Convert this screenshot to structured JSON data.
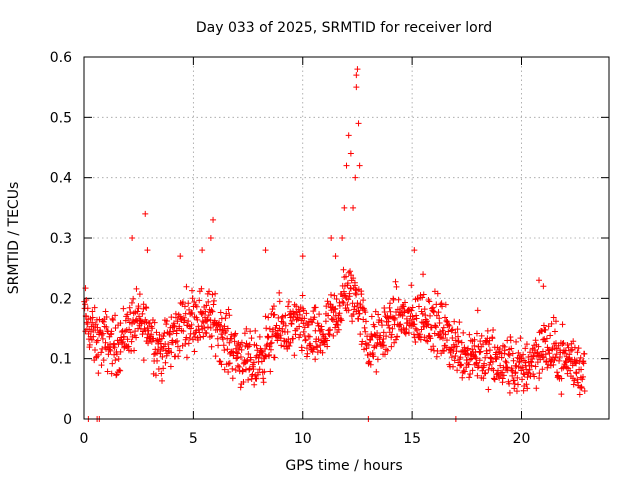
{
  "chart_data": {
    "type": "scatter",
    "title": "Day 033 of 2025, SRMTID for receiver lord",
    "xlabel": "GPS time / hours",
    "ylabel": "SRMTID / TECUs",
    "xlim": [
      0,
      24
    ],
    "ylim": [
      0,
      0.6
    ],
    "x_ticks": [
      0,
      5,
      10,
      15,
      20
    ],
    "y_ticks": [
      0,
      0.1,
      0.2,
      0.3,
      0.4,
      0.5,
      0.6
    ],
    "x_tick_labels": [
      "0",
      "5",
      "10",
      "15",
      "20"
    ],
    "y_tick_labels": [
      "0",
      "0.1",
      "0.2",
      "0.3",
      "0.4",
      "0.5",
      "0.6"
    ],
    "grid": true,
    "marker": "+",
    "series": [
      {
        "name": "SRMTID",
        "color": "#ff0000",
        "trend": [
          [
            0.0,
            0.175
          ],
          [
            0.5,
            0.13
          ],
          [
            1.0,
            0.13
          ],
          [
            1.5,
            0.12
          ],
          [
            2.0,
            0.15
          ],
          [
            2.5,
            0.16
          ],
          [
            3.0,
            0.15
          ],
          [
            3.5,
            0.11
          ],
          [
            4.0,
            0.13
          ],
          [
            4.5,
            0.16
          ],
          [
            5.0,
            0.17
          ],
          [
            5.5,
            0.17
          ],
          [
            6.0,
            0.16
          ],
          [
            6.5,
            0.13
          ],
          [
            7.0,
            0.11
          ],
          [
            7.5,
            0.09
          ],
          [
            8.0,
            0.1
          ],
          [
            8.5,
            0.13
          ],
          [
            9.0,
            0.15
          ],
          [
            9.5,
            0.15
          ],
          [
            10.0,
            0.15
          ],
          [
            10.5,
            0.13
          ],
          [
            11.0,
            0.14
          ],
          [
            11.5,
            0.17
          ],
          [
            12.0,
            0.21
          ],
          [
            12.5,
            0.2
          ],
          [
            13.0,
            0.12
          ],
          [
            13.5,
            0.13
          ],
          [
            14.0,
            0.16
          ],
          [
            14.5,
            0.17
          ],
          [
            15.0,
            0.16
          ],
          [
            15.5,
            0.17
          ],
          [
            16.0,
            0.16
          ],
          [
            16.5,
            0.14
          ],
          [
            17.0,
            0.12
          ],
          [
            17.5,
            0.11
          ],
          [
            18.0,
            0.11
          ],
          [
            18.5,
            0.1
          ],
          [
            19.0,
            0.09
          ],
          [
            19.5,
            0.09
          ],
          [
            20.0,
            0.08
          ],
          [
            20.5,
            0.1
          ],
          [
            21.0,
            0.12
          ],
          [
            21.5,
            0.11
          ],
          [
            22.0,
            0.1
          ],
          [
            22.5,
            0.09
          ],
          [
            22.9,
            0.08
          ]
        ],
        "spread": 0.045,
        "outliers": [
          [
            0.1,
            0.17
          ],
          [
            2.2,
            0.3
          ],
          [
            2.8,
            0.34
          ],
          [
            2.9,
            0.28
          ],
          [
            4.4,
            0.27
          ],
          [
            5.4,
            0.28
          ],
          [
            5.9,
            0.33
          ],
          [
            5.8,
            0.3
          ],
          [
            8.3,
            0.28
          ],
          [
            10.0,
            0.27
          ],
          [
            11.3,
            0.3
          ],
          [
            11.5,
            0.27
          ],
          [
            11.8,
            0.3
          ],
          [
            11.9,
            0.35
          ],
          [
            12.0,
            0.42
          ],
          [
            12.1,
            0.47
          ],
          [
            12.2,
            0.44
          ],
          [
            12.3,
            0.35
          ],
          [
            12.4,
            0.4
          ],
          [
            12.45,
            0.55
          ],
          [
            12.5,
            0.58
          ],
          [
            12.55,
            0.49
          ],
          [
            12.6,
            0.42
          ],
          [
            12.45,
            0.57
          ],
          [
            15.1,
            0.28
          ],
          [
            15.5,
            0.24
          ],
          [
            18.0,
            0.18
          ],
          [
            20.8,
            0.23
          ],
          [
            21.0,
            0.22
          ],
          [
            0.2,
            0.0
          ],
          [
            0.6,
            0.0
          ],
          [
            0.7,
            0.0
          ],
          [
            13.0,
            0.0
          ],
          [
            17.0,
            0.0
          ]
        ]
      }
    ]
  }
}
